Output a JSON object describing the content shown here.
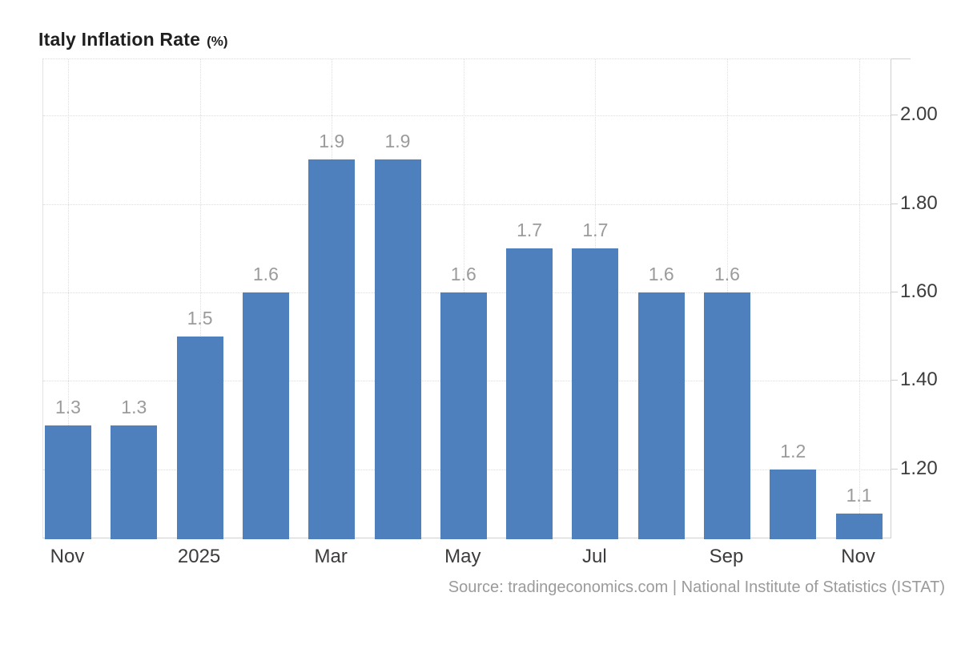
{
  "title": {
    "main": "Italy Inflation Rate",
    "suffix": "(%)"
  },
  "source": "Source: tradingeconomics.com | National Institute of Statistics (ISTAT)",
  "chart_data": {
    "type": "bar",
    "title": "Italy Inflation Rate (%)",
    "categories": [
      "Nov",
      "",
      "2025",
      "",
      "Mar",
      "",
      "May",
      "",
      "Jul",
      "",
      "Sep",
      "",
      "Nov"
    ],
    "values": [
      1.3,
      1.3,
      1.5,
      1.6,
      1.9,
      1.9,
      1.6,
      1.7,
      1.7,
      1.6,
      1.6,
      1.2,
      1.1
    ],
    "bar_labels": [
      "1.3",
      "1.3",
      "1.5",
      "1.6",
      "1.9",
      "1.9",
      "1.6",
      "1.7",
      "1.7",
      "1.6",
      "1.6",
      "1.2",
      "1.1"
    ],
    "y_ticks": [
      {
        "value": 2.0,
        "label": "2.00"
      },
      {
        "value": 1.8,
        "label": "1.80"
      },
      {
        "value": 1.6,
        "label": "1.60"
      },
      {
        "value": 1.4,
        "label": "1.40"
      },
      {
        "value": 1.2,
        "label": "1.20"
      }
    ],
    "ylim": [
      1.042,
      2.127
    ],
    "xlabel": "",
    "ylabel": "",
    "legend_position": "none",
    "grid": true,
    "colors": {
      "bar": "#4e80bd",
      "bar_label": "#9b9b9b",
      "axis_text": "#3c3c3c",
      "gridline": "#dcdcdc",
      "axis_line": "#cfcfcf",
      "title": "#1f1f1f",
      "source_text": "#9b9b9b",
      "background": "#ffffff"
    }
  }
}
